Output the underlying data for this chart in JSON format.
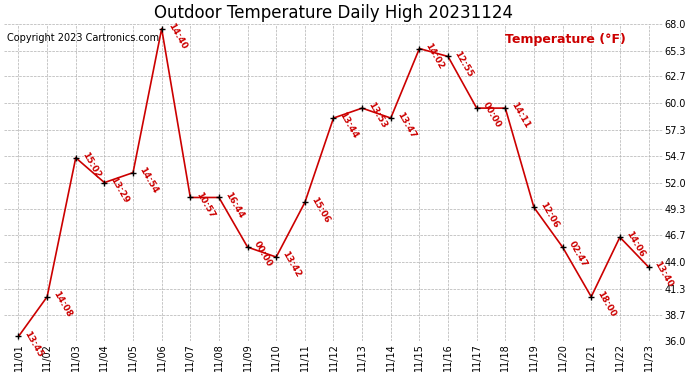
{
  "title": "Outdoor Temperature Daily High 20231124",
  "copyright": "Copyright 2023 Cartronics.com",
  "ylabel_text": "Temperature (°F)",
  "ylim": [
    36.0,
    68.0
  ],
  "yticks": [
    36.0,
    38.7,
    41.3,
    44.0,
    46.7,
    49.3,
    52.0,
    54.7,
    57.3,
    60.0,
    62.7,
    65.3,
    68.0
  ],
  "dates": [
    "11/01",
    "11/02",
    "11/03",
    "11/04",
    "11/05",
    "11/06",
    "11/07",
    "11/08",
    "11/09",
    "11/10",
    "11/11",
    "11/12",
    "11/13",
    "11/14",
    "11/15",
    "11/16",
    "11/17",
    "11/18",
    "11/19",
    "11/20",
    "11/21",
    "11/22",
    "11/23"
  ],
  "temps": [
    36.5,
    40.5,
    54.5,
    52.0,
    53.0,
    67.5,
    50.5,
    50.5,
    45.5,
    44.5,
    50.0,
    58.5,
    59.5,
    58.5,
    65.5,
    64.7,
    59.5,
    59.5,
    49.5,
    45.5,
    40.5,
    46.5,
    43.5
  ],
  "labels": [
    "13:45",
    "14:08",
    "15:02",
    "13:29",
    "14:54",
    "14:40",
    "10:57",
    "16:44",
    "00:00",
    "13:42",
    "15:06",
    "13:44",
    "13:53",
    "13:47",
    "14:02",
    "12:55",
    "00:00",
    "14:11",
    "12:06",
    "02:47",
    "18:00",
    "14:06",
    "13:40"
  ],
  "line_color": "#cc0000",
  "grid_color": "#b0b0b0",
  "bg_color": "#ffffff",
  "title_fontsize": 12,
  "label_fontsize": 7,
  "copyright_fontsize": 7,
  "ylabel_fontsize": 9,
  "tick_fontsize": 7,
  "annot_fontsize": 6.5
}
